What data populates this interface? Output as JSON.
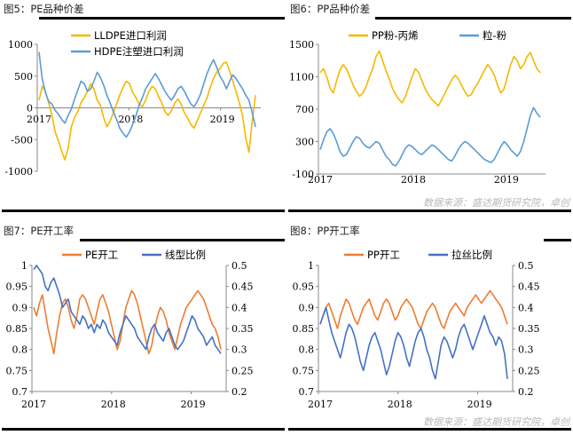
{
  "colors": {
    "orange": "#f5b800",
    "blue": "#5b9bd5",
    "orange2": "#ed7d31",
    "blue2": "#4472c4"
  },
  "panels": [
    {
      "title": "图5：PE品种价差",
      "source": ""
    },
    {
      "title": "图6：PP品种价差",
      "source": "数据来源：盛达期货研究院，卓创"
    },
    {
      "title": "图7：PE开工率",
      "source": ""
    },
    {
      "title": "图8：PP开工率",
      "source": "数据来源：盛达期货研究院，卓创"
    }
  ],
  "chart_data": [
    {
      "type": "line",
      "title": "",
      "ylim": [
        -1000,
        1000
      ],
      "yticks": [
        "1000",
        "500",
        "0",
        "-500",
        "-1000"
      ],
      "xticks": [
        "2017",
        "2018",
        "2019"
      ],
      "x_period": "2017-01 to 2019-05 (weekly)",
      "series": [
        {
          "name": "LLDPE进口利润",
          "color": "orange",
          "values": [
            120,
            340,
            260,
            80,
            -120,
            -380,
            -520,
            -680,
            -820,
            -640,
            -300,
            -150,
            -60,
            80,
            160,
            260,
            380,
            300,
            120,
            40,
            -150,
            -300,
            -210,
            -80,
            60,
            200,
            320,
            420,
            380,
            240,
            160,
            60,
            20,
            120,
            260,
            340,
            300,
            180,
            80,
            -60,
            -120,
            -40,
            80,
            140,
            60,
            -80,
            -160,
            -260,
            -320,
            -200,
            -80,
            40,
            160,
            320,
            460,
            560,
            620,
            700,
            720,
            580,
            420,
            260,
            80,
            -120,
            -480,
            -700,
            -200,
            200
          ]
        },
        {
          "name": "HDPE注塑进口利润",
          "color": "blue",
          "values": [
            880,
            460,
            240,
            100,
            60,
            -40,
            -100,
            -180,
            -240,
            -120,
            -20,
            140,
            280,
            420,
            380,
            260,
            300,
            420,
            560,
            480,
            360,
            200,
            80,
            -60,
            -180,
            -320,
            -400,
            -460,
            -380,
            -260,
            -120,
            40,
            160,
            300,
            380,
            460,
            540,
            460,
            360,
            260,
            180,
            120,
            200,
            300,
            340,
            260,
            160,
            60,
            20,
            100,
            220,
            380,
            540,
            660,
            760,
            640,
            500,
            420,
            300,
            420,
            520,
            460,
            380,
            300,
            200,
            120,
            -80,
            -300
          ]
        }
      ]
    },
    {
      "type": "line",
      "title": "",
      "ylim": [
        -100,
        1500
      ],
      "yticks": [
        "1500",
        "1100",
        "700",
        "300",
        "-100"
      ],
      "xticks": [
        "2017",
        "2018",
        "2019"
      ],
      "x_period": "2017-01 to 2019-05 (weekly)",
      "series": [
        {
          "name": "PP粉-丙烯",
          "color": "orange",
          "values": [
            1150,
            1200,
            1100,
            960,
            900,
            1050,
            1180,
            1250,
            1200,
            1100,
            1000,
            920,
            860,
            900,
            980,
            1100,
            1200,
            1350,
            1420,
            1300,
            1180,
            1080,
            960,
            880,
            820,
            780,
            860,
            980,
            1100,
            1200,
            1150,
            1050,
            950,
            880,
            820,
            780,
            740,
            820,
            900,
            980,
            1060,
            1120,
            1080,
            1000,
            920,
            860,
            880,
            960,
            1020,
            1100,
            1180,
            1250,
            1200,
            1120,
            1000,
            900,
            950,
            1100,
            1250,
            1350,
            1300,
            1200,
            1250,
            1350,
            1400,
            1300,
            1200,
            1150
          ]
        },
        {
          "name": "粒-粉",
          "color": "blue",
          "values": [
            200,
            320,
            420,
            460,
            400,
            300,
            180,
            120,
            140,
            220,
            300,
            360,
            340,
            280,
            240,
            220,
            260,
            300,
            280,
            200,
            120,
            80,
            20,
            0,
            60,
            140,
            220,
            260,
            240,
            200,
            160,
            140,
            180,
            220,
            260,
            240,
            200,
            160,
            120,
            80,
            60,
            120,
            200,
            260,
            300,
            280,
            240,
            200,
            160,
            120,
            80,
            60,
            40,
            80,
            160,
            240,
            300,
            260,
            200,
            160,
            120,
            180,
            300,
            460,
            620,
            720,
            650,
            600
          ]
        }
      ]
    },
    {
      "type": "line",
      "title": "",
      "ylim": [
        0.7,
        1.0
      ],
      "ylim_right": [
        0.2,
        0.5
      ],
      "yticks": [
        "1",
        "0.95",
        "0.9",
        "0.85",
        "0.8",
        "0.75",
        "0.7"
      ],
      "yticks_right": [
        "0.5",
        "0.45",
        "0.4",
        "0.35",
        "0.3",
        "0.25",
        "0.2"
      ],
      "xticks": [
        "2017",
        "2018",
        "2019"
      ],
      "x_period": "2017-01 to 2019-05 (weekly)",
      "series": [
        {
          "name": "PE开工",
          "color": "orange2",
          "axis": "left",
          "values": [
            0.9,
            0.88,
            0.91,
            0.93,
            0.89,
            0.85,
            0.82,
            0.79,
            0.84,
            0.88,
            0.91,
            0.92,
            0.9,
            0.87,
            0.85,
            0.88,
            0.92,
            0.93,
            0.92,
            0.9,
            0.88,
            0.86,
            0.89,
            0.92,
            0.93,
            0.91,
            0.89,
            0.86,
            0.83,
            0.8,
            0.82,
            0.86,
            0.9,
            0.92,
            0.94,
            0.93,
            0.91,
            0.88,
            0.85,
            0.82,
            0.79,
            0.81,
            0.85,
            0.88,
            0.9,
            0.89,
            0.87,
            0.84,
            0.82,
            0.8,
            0.83,
            0.86,
            0.88,
            0.9,
            0.91,
            0.92,
            0.93,
            0.94,
            0.93,
            0.92,
            0.9,
            0.88,
            0.86,
            0.85,
            0.83,
            0.8
          ]
        },
        {
          "name": "线型比例",
          "color": "blue2",
          "axis": "right",
          "values": [
            0.49,
            0.5,
            0.49,
            0.48,
            0.45,
            0.44,
            0.46,
            0.47,
            0.45,
            0.43,
            0.4,
            0.41,
            0.42,
            0.39,
            0.38,
            0.37,
            0.36,
            0.38,
            0.37,
            0.35,
            0.36,
            0.34,
            0.36,
            0.35,
            0.37,
            0.36,
            0.34,
            0.33,
            0.32,
            0.31,
            0.34,
            0.36,
            0.38,
            0.37,
            0.36,
            0.35,
            0.33,
            0.32,
            0.31,
            0.3,
            0.33,
            0.35,
            0.36,
            0.34,
            0.33,
            0.32,
            0.34,
            0.35,
            0.33,
            0.31,
            0.3,
            0.31,
            0.32,
            0.34,
            0.36,
            0.38,
            0.37,
            0.35,
            0.34,
            0.33,
            0.31,
            0.32,
            0.33,
            0.31,
            0.3,
            0.29
          ]
        }
      ]
    },
    {
      "type": "line",
      "title": "",
      "ylim": [
        0.7,
        1.0
      ],
      "ylim_right": [
        0.2,
        0.5
      ],
      "yticks": [
        "1",
        "0.95",
        "0.9",
        "0.85",
        "0.8",
        "0.75",
        "0.7"
      ],
      "yticks_right": [
        "0.5",
        "0.45",
        "0.4",
        "0.35",
        "0.3",
        "0.25",
        "0.2"
      ],
      "xticks": [
        "2017",
        "2018",
        "2019"
      ],
      "x_period": "2017-01 to 2019-05 (weekly)",
      "series": [
        {
          "name": "PP开工",
          "color": "orange2",
          "axis": "left",
          "values": [
            0.86,
            0.88,
            0.9,
            0.91,
            0.89,
            0.87,
            0.85,
            0.88,
            0.9,
            0.92,
            0.91,
            0.89,
            0.87,
            0.86,
            0.88,
            0.9,
            0.91,
            0.92,
            0.9,
            0.88,
            0.87,
            0.89,
            0.91,
            0.92,
            0.91,
            0.89,
            0.87,
            0.88,
            0.9,
            0.91,
            0.92,
            0.91,
            0.9,
            0.88,
            0.86,
            0.85,
            0.87,
            0.89,
            0.9,
            0.91,
            0.9,
            0.88,
            0.86,
            0.85,
            0.87,
            0.89,
            0.9,
            0.91,
            0.9,
            0.89,
            0.88,
            0.9,
            0.91,
            0.92,
            0.93,
            0.92,
            0.91,
            0.92,
            0.93,
            0.94,
            0.93,
            0.92,
            0.91,
            0.9,
            0.88,
            0.86
          ]
        },
        {
          "name": "拉丝比例",
          "color": "blue2",
          "axis": "right",
          "values": [
            0.36,
            0.38,
            0.4,
            0.37,
            0.34,
            0.32,
            0.3,
            0.28,
            0.31,
            0.34,
            0.36,
            0.35,
            0.33,
            0.3,
            0.27,
            0.25,
            0.28,
            0.31,
            0.33,
            0.34,
            0.32,
            0.3,
            0.27,
            0.24,
            0.26,
            0.29,
            0.32,
            0.34,
            0.33,
            0.31,
            0.28,
            0.26,
            0.29,
            0.32,
            0.34,
            0.35,
            0.33,
            0.3,
            0.28,
            0.25,
            0.23,
            0.27,
            0.31,
            0.33,
            0.32,
            0.3,
            0.28,
            0.3,
            0.33,
            0.35,
            0.36,
            0.34,
            0.32,
            0.3,
            0.32,
            0.34,
            0.36,
            0.38,
            0.36,
            0.34,
            0.33,
            0.31,
            0.33,
            0.32,
            0.29,
            0.23
          ]
        }
      ]
    }
  ]
}
